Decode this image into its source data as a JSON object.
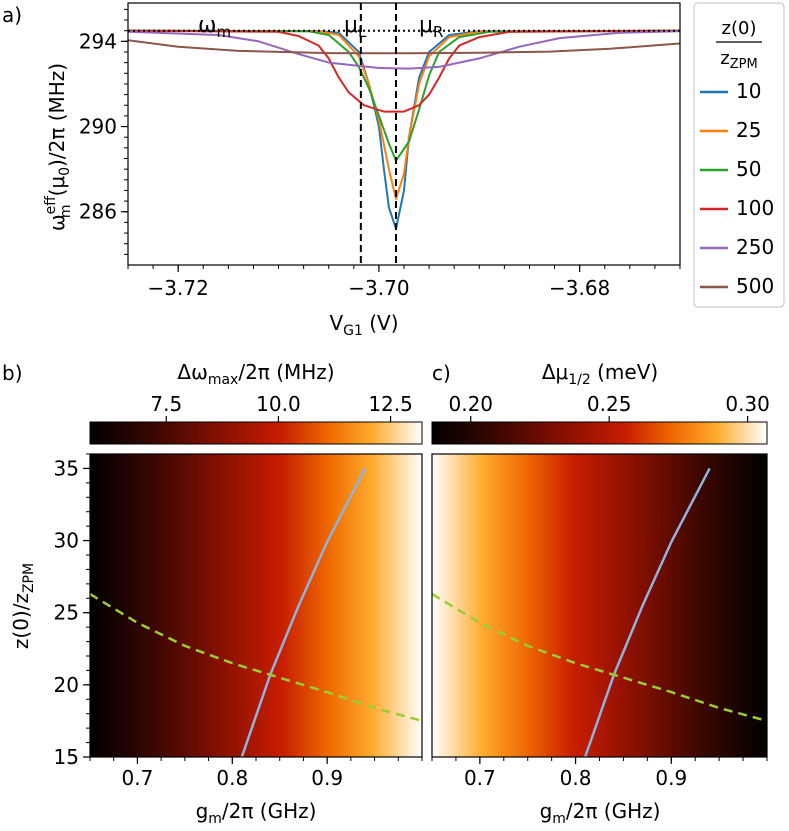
{
  "chart_data": [
    {
      "panel": "a)",
      "type": "line",
      "xlabel": "V_G1 (V)",
      "ylabel": "ω_m^eff(μ0)/2π (MHz)",
      "xlim": [
        -3.725,
        -3.67
      ],
      "ylim": [
        283.5,
        295.8
      ],
      "xticks": [
        "−3.72",
        "−3.70",
        "−3.68"
      ],
      "xtick_values": [
        -3.72,
        -3.7,
        -3.68
      ],
      "yticks": [
        "286",
        "290",
        "294"
      ],
      "ytick_values": [
        286,
        290,
        294
      ],
      "grid": false,
      "legend_title": "z(0) / z_ZPM",
      "legend_placement": "right, outside plot",
      "annotations": {
        "omega": "ω",
        "omega_sub": "m",
        "mu": "μ",
        "mu_L_sub": "L",
        "mu_R_sub": "R"
      },
      "reference_lines": {
        "omega_m": 294.5,
        "mu_L": -3.7018,
        "mu_R": -3.6983
      },
      "series": [
        {
          "name": "10",
          "color": "#1f77b4",
          "points": [
            [
              -3.725,
              294.5
            ],
            [
              -3.706,
              294.48
            ],
            [
              -3.704,
              294.4
            ],
            [
              -3.702,
              293.5
            ],
            [
              -3.701,
              292.0
            ],
            [
              -3.7,
              290.0
            ],
            [
              -3.6995,
              288.0
            ],
            [
              -3.699,
              286.2
            ],
            [
              -3.6983,
              285.2
            ],
            [
              -3.6975,
              287.0
            ],
            [
              -3.697,
              289.5
            ],
            [
              -3.696,
              292.3
            ],
            [
              -3.695,
              293.5
            ],
            [
              -3.693,
              294.3
            ],
            [
              -3.69,
              294.47
            ],
            [
              -3.67,
              294.5
            ]
          ]
        },
        {
          "name": "25",
          "color": "#ff7f0e",
          "points": [
            [
              -3.725,
              294.5
            ],
            [
              -3.706,
              294.48
            ],
            [
              -3.704,
              294.3
            ],
            [
              -3.702,
              293.3
            ],
            [
              -3.701,
              292.0
            ],
            [
              -3.7,
              290.3
            ],
            [
              -3.699,
              288.0
            ],
            [
              -3.6983,
              286.6
            ],
            [
              -3.6975,
              287.8
            ],
            [
              -3.697,
              289.5
            ],
            [
              -3.696,
              292.0
            ],
            [
              -3.695,
              293.3
            ],
            [
              -3.693,
              294.2
            ],
            [
              -3.69,
              294.46
            ],
            [
              -3.67,
              294.5
            ]
          ]
        },
        {
          "name": "50",
          "color": "#2ca02c",
          "points": [
            [
              -3.725,
              294.5
            ],
            [
              -3.707,
              294.47
            ],
            [
              -3.705,
              294.3
            ],
            [
              -3.703,
              293.5
            ],
            [
              -3.702,
              292.8
            ],
            [
              -3.701,
              291.8
            ],
            [
              -3.7,
              290.5
            ],
            [
              -3.699,
              289.2
            ],
            [
              -3.6983,
              288.4
            ],
            [
              -3.697,
              289.3
            ],
            [
              -3.696,
              290.8
            ],
            [
              -3.695,
              292.4
            ],
            [
              -3.694,
              293.5
            ],
            [
              -3.692,
              294.2
            ],
            [
              -3.689,
              294.45
            ],
            [
              -3.67,
              294.5
            ]
          ]
        },
        {
          "name": "100",
          "color": "#d62728",
          "points": [
            [
              -3.725,
              294.5
            ],
            [
              -3.71,
              294.45
            ],
            [
              -3.708,
              294.25
            ],
            [
              -3.706,
              293.8
            ],
            [
              -3.705,
              293.2
            ],
            [
              -3.704,
              292.3
            ],
            [
              -3.703,
              291.6
            ],
            [
              -3.7015,
              291.0
            ],
            [
              -3.6995,
              290.7
            ],
            [
              -3.6975,
              290.7
            ],
            [
              -3.696,
              291.0
            ],
            [
              -3.695,
              291.5
            ],
            [
              -3.694,
              292.3
            ],
            [
              -3.693,
              293.2
            ],
            [
              -3.692,
              293.8
            ],
            [
              -3.69,
              294.2
            ],
            [
              -3.687,
              294.45
            ],
            [
              -3.67,
              294.5
            ]
          ]
        },
        {
          "name": "250",
          "color": "#9467bd",
          "points": [
            [
              -3.725,
              294.45
            ],
            [
              -3.716,
              294.3
            ],
            [
              -3.712,
              294.0
            ],
            [
              -3.708,
              293.4
            ],
            [
              -3.705,
              293.0
            ],
            [
              -3.7,
              292.75
            ],
            [
              -3.697,
              292.72
            ],
            [
              -3.694,
              292.8
            ],
            [
              -3.69,
              293.2
            ],
            [
              -3.686,
              293.75
            ],
            [
              -3.682,
              294.15
            ],
            [
              -3.676,
              294.4
            ],
            [
              -3.67,
              294.47
            ]
          ]
        },
        {
          "name": "500",
          "color": "#8c564b",
          "points": [
            [
              -3.725,
              294.05
            ],
            [
              -3.72,
              293.75
            ],
            [
              -3.714,
              293.55
            ],
            [
              -3.705,
              293.45
            ],
            [
              -3.697,
              293.44
            ],
            [
              -3.69,
              293.46
            ],
            [
              -3.683,
              293.52
            ],
            [
              -3.677,
              293.65
            ],
            [
              -3.67,
              293.9
            ]
          ]
        }
      ]
    },
    {
      "panel": "b)",
      "type": "heatmap",
      "colorbar_label": "Δω_max/2π (MHz)",
      "colorbar_ticks": [
        "7.5",
        "10.0",
        "12.5"
      ],
      "colorbar_tick_values": [
        7.5,
        10.0,
        12.5
      ],
      "colorbar_range": [
        5.8,
        13.2
      ],
      "colormap": "gist_heat",
      "xlabel": "g_m/2π (GHz)",
      "ylabel": "z(0)/z_ZPM",
      "xlim": [
        0.65,
        1.0
      ],
      "ylim": [
        15,
        36
      ],
      "xticks": [
        "0.7",
        "0.8",
        "0.9"
      ],
      "xtick_values": [
        0.7,
        0.8,
        0.9
      ],
      "yticks": [
        "15",
        "20",
        "25",
        "30",
        "35"
      ],
      "ytick_values": [
        15,
        20,
        25,
        30,
        35
      ],
      "solid_curve": {
        "color": "#8fb3de",
        "points": [
          [
            0.81,
            15
          ],
          [
            0.84,
            20.7
          ],
          [
            0.87,
            25.5
          ],
          [
            0.9,
            29.9
          ],
          [
            0.94,
            35
          ]
        ]
      },
      "dashed_curve": {
        "color": "#9acd32",
        "points": [
          [
            0.65,
            26.3
          ],
          [
            0.7,
            24.3
          ],
          [
            0.75,
            22.7
          ],
          [
            0.8,
            21.5
          ],
          [
            0.84,
            20.7
          ],
          [
            0.9,
            19.5
          ],
          [
            0.95,
            18.4
          ],
          [
            1.0,
            17.5
          ]
        ]
      }
    },
    {
      "panel": "c)",
      "type": "heatmap",
      "colorbar_label": "Δμ_1/2 (meV)",
      "colorbar_ticks": [
        "0.20",
        "0.25",
        "0.30"
      ],
      "colorbar_tick_values": [
        0.2,
        0.25,
        0.3
      ],
      "colorbar_range": [
        0.186,
        0.307
      ],
      "colormap": "gist_heat",
      "xlabel": "g_m/2π (GHz)",
      "xlim": [
        0.65,
        1.0
      ],
      "ylim": [
        15,
        36
      ],
      "xticks": [
        "0.7",
        "0.8",
        "0.9"
      ],
      "xtick_values": [
        0.7,
        0.8,
        0.9
      ],
      "solid_curve": {
        "color": "#8fb3de",
        "points": [
          [
            0.81,
            15
          ],
          [
            0.84,
            20.7
          ],
          [
            0.87,
            25.5
          ],
          [
            0.9,
            29.9
          ],
          [
            0.94,
            35
          ]
        ]
      },
      "dashed_curve": {
        "color": "#9acd32",
        "points": [
          [
            0.65,
            26.3
          ],
          [
            0.7,
            24.3
          ],
          [
            0.75,
            22.7
          ],
          [
            0.8,
            21.5
          ],
          [
            0.84,
            20.7
          ],
          [
            0.9,
            19.5
          ],
          [
            0.95,
            18.4
          ],
          [
            1.0,
            17.5
          ]
        ]
      }
    }
  ]
}
